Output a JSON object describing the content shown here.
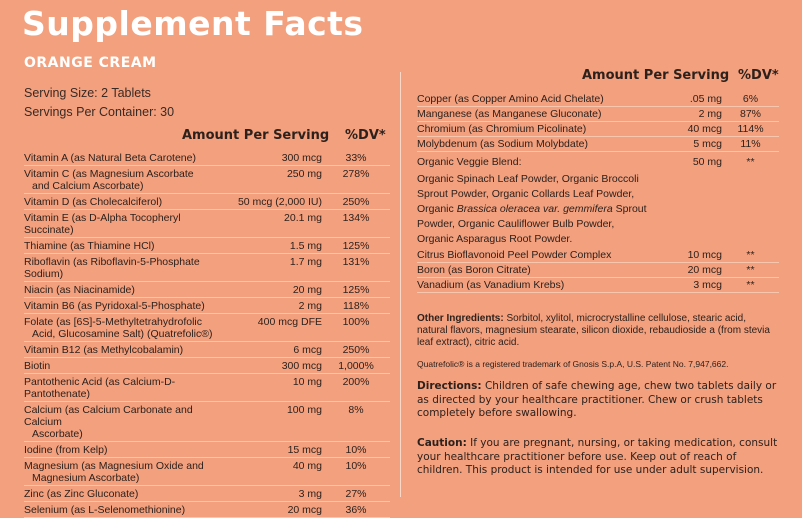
{
  "title": "Supplement Facts",
  "subtitle": "ORANGE CREAM",
  "serving_size": "Serving Size: 2 Tablets",
  "servings_per_container": "Servings Per Container: 30",
  "header": {
    "amount": "Amount Per Serving",
    "dv": "%DV*"
  },
  "left_nutrients": [
    {
      "name": "Vitamin A (as Natural Beta Carotene)",
      "amount": "300 mcg",
      "dv": "33%"
    },
    {
      "name": "Vitamin C (as Magnesium Ascorbate",
      "name2": "and Calcium Ascorbate)",
      "amount": "250 mg",
      "dv": "278%"
    },
    {
      "name": "Vitamin D (as Cholecalciferol)",
      "amount": "50 mcg (2,000 IU)",
      "dv": "250%"
    },
    {
      "name": "Vitamin E (as D-Alpha Tocopheryl Succinate)",
      "amount": "20.1 mg",
      "dv": "134%"
    },
    {
      "name": "Thiamine (as Thiamine HCl)",
      "amount": "1.5 mg",
      "dv": "125%"
    },
    {
      "name": "Riboflavin (as Riboflavin-5-Phosphate Sodium)",
      "amount": "1.7 mg",
      "dv": "131%"
    },
    {
      "name": "Niacin (as Niacinamide)",
      "amount": "20 mg",
      "dv": "125%"
    },
    {
      "name": "Vitamin B6 (as Pyridoxal-5-Phosphate)",
      "amount": "2 mg",
      "dv": "118%"
    },
    {
      "name": "Folate (as [6S]-5-Methyltetrahydrofolic",
      "name2": "Acid, Glucosamine Salt) (Quatrefolic®)",
      "amount": "400 mcg DFE",
      "dv": "100%"
    },
    {
      "name": "Vitamin B12 (as Methylcobalamin)",
      "amount": "6 mcg",
      "dv": "250%"
    },
    {
      "name": "Biotin",
      "amount": "300 mcg",
      "dv": "1,000%"
    },
    {
      "name": "Pantothenic Acid (as Calcium-D-Pantothenate)",
      "amount": "10 mg",
      "dv": "200%"
    },
    {
      "name": "Calcium (as Calcium Carbonate and Calcium",
      "name2": "Ascorbate)",
      "amount": "100 mg",
      "dv": "8%"
    },
    {
      "name": "Iodine (from Kelp)",
      "amount": "15 mcg",
      "dv": "10%"
    },
    {
      "name": "Magnesium (as Magnesium Oxide and",
      "name2": "Magnesium Ascorbate)",
      "amount": "40 mg",
      "dv": "10%"
    },
    {
      "name": "Zinc (as Zinc Gluconate)",
      "amount": "3 mg",
      "dv": "27%"
    },
    {
      "name": "Selenium (as L-Selenomethionine)",
      "amount": "20 mcg",
      "dv": "36%"
    }
  ],
  "right_nutrients": [
    {
      "name": "Copper (as Copper Amino Acid Chelate)",
      "amount": ".05 mg",
      "dv": "6%"
    },
    {
      "name": "Manganese (as Manganese Gluconate)",
      "amount": "2 mg",
      "dv": "87%"
    },
    {
      "name": "Chromium (as Chromium Picolinate)",
      "amount": "40 mcg",
      "dv": "114%"
    },
    {
      "name": "Molybdenum (as Sodium Molybdate)",
      "amount": "5 mcg",
      "dv": "11%"
    }
  ],
  "veggie_blend": {
    "name": "Organic Veggie Blend:",
    "amount": "50 mg",
    "dv": "**",
    "line1": "Organic Spinach Leaf Powder, Organic Broccoli",
    "line2": "Sprout Powder, Organic Collards Leaf Powder,",
    "line3_pre": "Organic ",
    "line3_italic": "Brassica oleracea var. gemmifera",
    "line3_post": " Sprout",
    "line4": "Powder, Organic Cauliflower Bulb Powder,",
    "line5": "Organic Asparagus Root Powder."
  },
  "right_nutrients_2": [
    {
      "name": "Citrus Bioflavonoid Peel Powder Complex",
      "amount": "10 mcg",
      "dv": "**"
    },
    {
      "name": "Boron (as Boron Citrate)",
      "amount": "20 mcg",
      "dv": "**"
    },
    {
      "name": "Vanadium (as Vanadium Krebs)",
      "amount": "3 mcg",
      "dv": "**"
    }
  ],
  "other_ingredients": {
    "label": "Other Ingredients:",
    "text": "Sorbitol, xylitol, microcrystalline cellulose, stearic acid, natural flavors, magnesium stearate, silicon dioxide, rebaudioside a (from stevia leaf extract), citric acid."
  },
  "trademark": "Quatrefolic® is a registered trademark of Gnosis S.p.A, U.S. Patent No. 7,947,662.",
  "directions": {
    "label": "Directions:",
    "text": "Children of safe chewing age, chew two tablets daily or as directed by your healthcare practitioner. Chew or crush tablets completely before swallowing."
  },
  "caution": {
    "label": "Caution:",
    "text": "If you are pregnant, nursing, or taking medication, consult your healthcare practitioner before use. Keep out of reach of children. This product is intended for use under adult supervision."
  }
}
